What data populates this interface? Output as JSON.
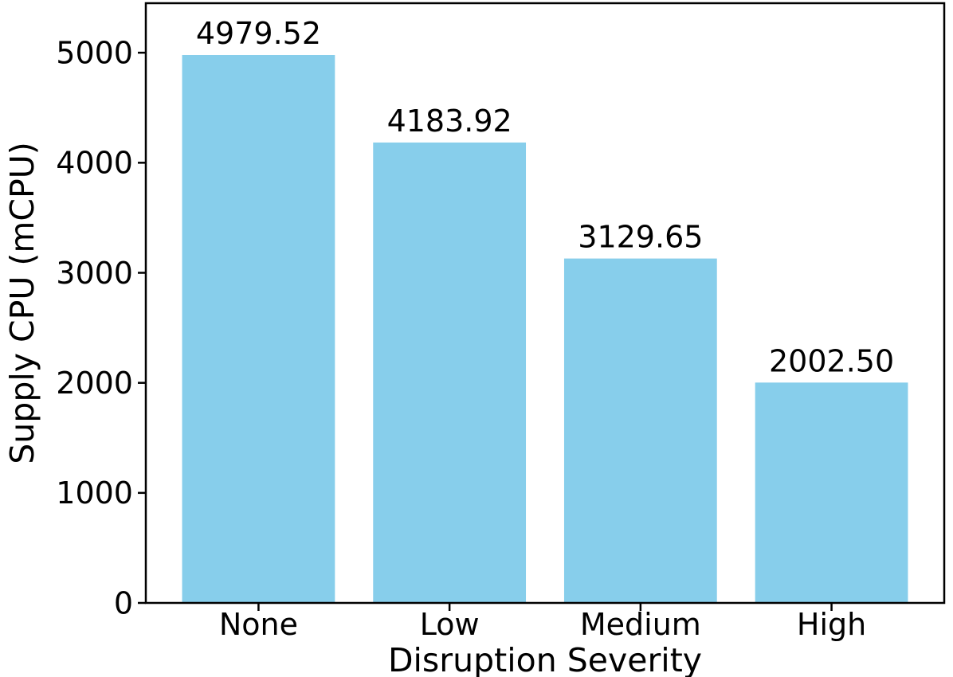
{
  "chart_data": {
    "type": "bar",
    "title": "",
    "xlabel": "Disruption Severity",
    "ylabel": "Supply CPU (mCPU)",
    "categories": [
      "None",
      "Low",
      "Medium",
      "High"
    ],
    "values": [
      4979.52,
      4183.92,
      3129.65,
      2002.5
    ],
    "value_labels": [
      "4979.52",
      "4183.92",
      "3129.65",
      "2002.50"
    ],
    "yticks": [
      0,
      1000,
      2000,
      3000,
      4000,
      5000
    ],
    "ytick_labels": [
      "0",
      "1000",
      "2000",
      "3000",
      "4000",
      "5000"
    ],
    "ylim": [
      0,
      5450
    ],
    "xlim": [
      -0.59,
      3.59
    ],
    "bar_width": 0.8,
    "grid": false,
    "legend": "none",
    "colors": {
      "bar_fill": "#87CEEB",
      "spine": "#000000",
      "text": "#000000",
      "background": "#ffffff"
    }
  }
}
